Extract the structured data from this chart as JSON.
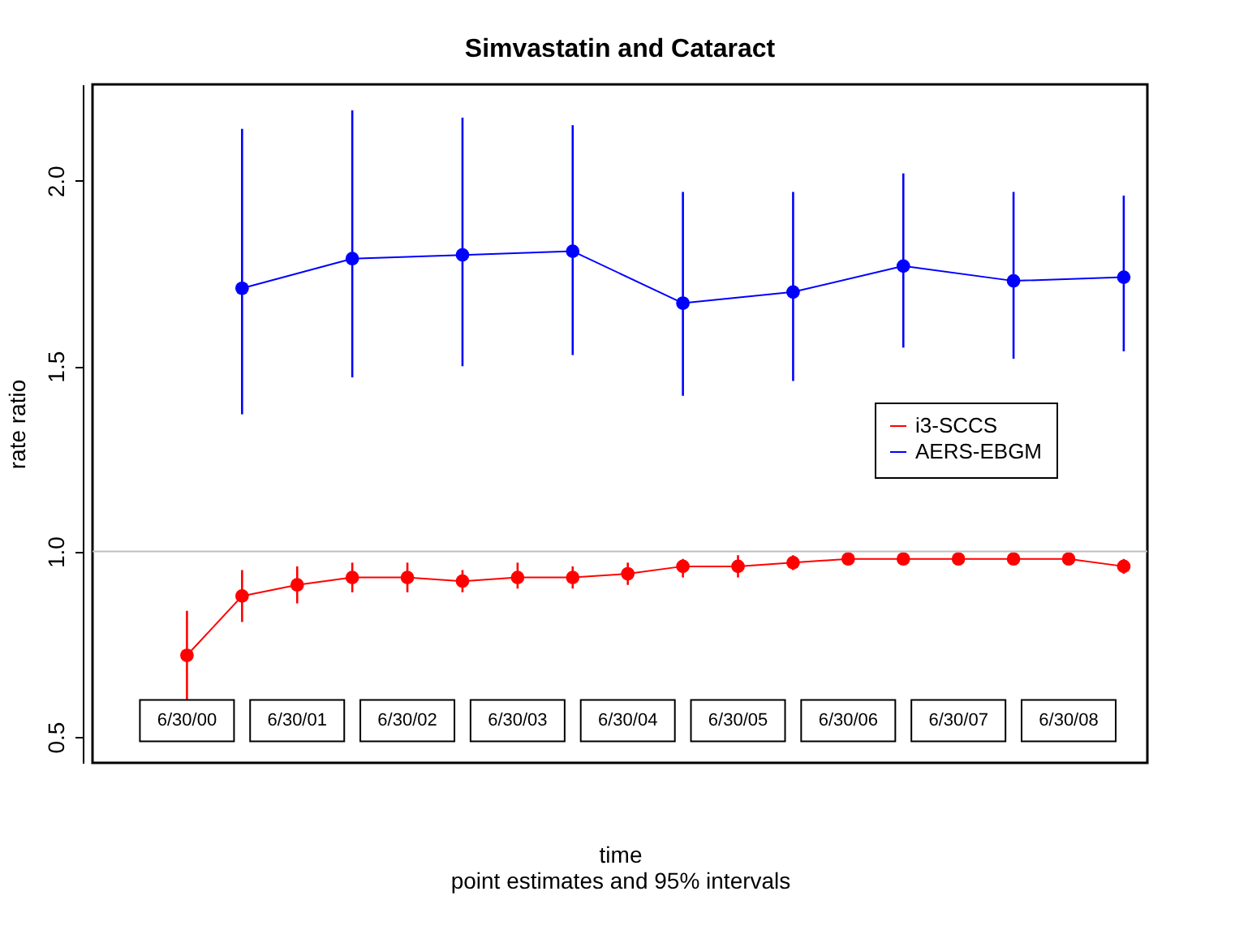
{
  "chart_data": {
    "type": "line",
    "title": "Simvastatin and Cataract",
    "subtitle": "point estimates and 95% intervals",
    "xlabel": "time",
    "ylabel": "rate ratio",
    "categories": [
      "6/30/00",
      null,
      "6/30/01",
      null,
      "6/30/02",
      null,
      "6/30/03",
      null,
      "6/30/04",
      null,
      "6/30/05",
      null,
      "6/30/06",
      null,
      "6/30/07",
      null,
      "6/30/08",
      null
    ],
    "series": [
      {
        "name": "i3-SCCS",
        "color": "#ff0000",
        "values": [
          0.72,
          0.88,
          0.91,
          0.93,
          0.93,
          0.92,
          0.93,
          0.93,
          0.94,
          0.96,
          0.96,
          0.97,
          0.98,
          0.98,
          0.98,
          0.98,
          0.98,
          0.96
        ],
        "errors": [
          [
            0.6,
            0.84
          ],
          [
            0.81,
            0.95
          ],
          [
            0.86,
            0.96
          ],
          [
            0.89,
            0.97
          ],
          [
            0.89,
            0.97
          ],
          [
            0.89,
            0.95
          ],
          [
            0.9,
            0.97
          ],
          [
            0.9,
            0.96
          ],
          [
            0.91,
            0.97
          ],
          [
            0.93,
            0.98
          ],
          [
            0.93,
            0.99
          ],
          [
            0.95,
            0.99
          ],
          null,
          null,
          null,
          null,
          null,
          [
            0.94,
            0.98
          ]
        ]
      },
      {
        "name": "AERS-EBGM",
        "color": "#0000ff",
        "values": [
          null,
          1.71,
          null,
          1.79,
          null,
          1.8,
          null,
          1.81,
          null,
          1.67,
          null,
          1.7,
          null,
          1.77,
          null,
          1.73,
          null,
          1.74
        ],
        "errors": [
          null,
          [
            1.37,
            2.14
          ],
          null,
          [
            1.47,
            2.19
          ],
          null,
          [
            1.5,
            2.17
          ],
          null,
          [
            1.53,
            2.15
          ],
          null,
          [
            1.42,
            1.97
          ],
          null,
          [
            1.46,
            1.97
          ],
          null,
          [
            1.55,
            2.02
          ],
          null,
          [
            1.52,
            1.97
          ],
          null,
          [
            1.54,
            1.96
          ]
        ]
      }
    ],
    "ylim": [
      0.43,
      2.26
    ],
    "yticks": [
      {
        "value": 0.5,
        "label": "0.5"
      },
      {
        "value": 1.0,
        "label": "1.0"
      },
      {
        "value": 1.5,
        "label": "1.5"
      },
      {
        "value": 2.0,
        "label": "2.0"
      }
    ],
    "ref_lines": [
      {
        "axis": "y",
        "value": 1.0,
        "color": "#bebebe"
      }
    ],
    "marker": "circle",
    "line_style": "solid",
    "grid": false,
    "legend": "right"
  }
}
